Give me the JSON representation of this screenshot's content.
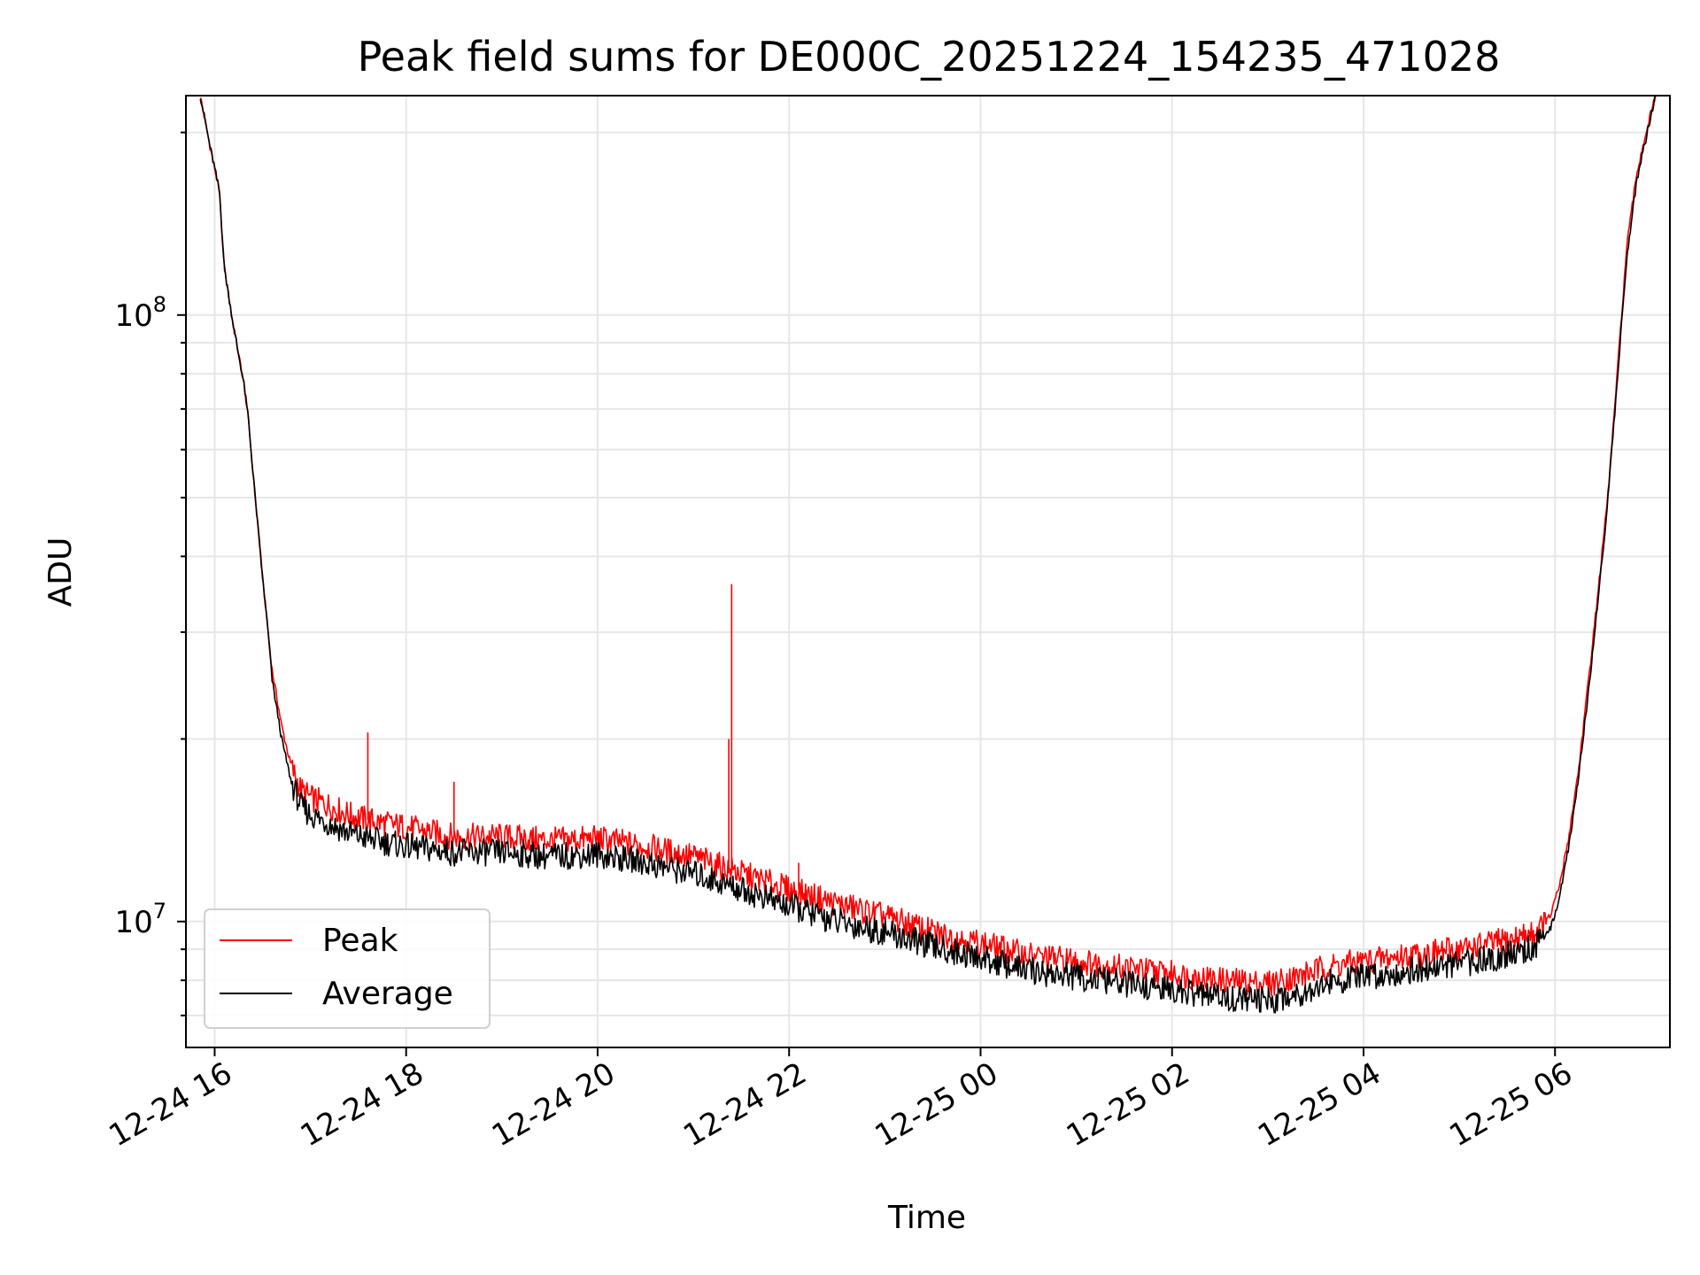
{
  "chart_data": {
    "type": "line",
    "title": "Peak field sums for DE000C_20251224_154235_471028",
    "xlabel": "Time",
    "ylabel": "ADU",
    "yscale": "log",
    "ylim": [
      6200000,
      230000000
    ],
    "xlim_hours": [
      -0.3,
      15.2
    ],
    "grid": true,
    "x_tick_labels": [
      "12-24 16",
      "12-24 18",
      "12-24 20",
      "12-24 22",
      "12-25 00",
      "12-25 02",
      "12-25 04",
      "12-25 06"
    ],
    "x_tick_hours": [
      0,
      2,
      4,
      6,
      8,
      10,
      12,
      14
    ],
    "y_major_ticks": [
      {
        "value": 10000000,
        "base": "10",
        "exp": "7"
      },
      {
        "value": 100000000,
        "base": "10",
        "exp": "8"
      }
    ],
    "legend_position": "lower-left",
    "series": [
      {
        "name": "Peak",
        "color": "#ff0000",
        "points": [
          [
            -0.15,
            230000000
          ],
          [
            -0.05,
            190000000
          ],
          [
            0.05,
            160000000
          ],
          [
            0.1,
            120000000
          ],
          [
            0.2,
            95000000
          ],
          [
            0.3,
            78000000
          ],
          [
            0.35,
            68000000
          ],
          [
            0.4,
            55000000
          ],
          [
            0.45,
            45000000
          ],
          [
            0.5,
            37000000
          ],
          [
            0.55,
            31000000
          ],
          [
            0.6,
            26000000
          ],
          [
            0.7,
            21000000
          ],
          [
            0.8,
            18000000
          ],
          [
            0.9,
            16500000
          ],
          [
            1.0,
            16000000
          ],
          [
            1.2,
            15500000
          ],
          [
            1.4,
            15000000
          ],
          [
            1.6,
            14700000
          ],
          [
            1.8,
            14500000
          ],
          [
            2.0,
            14300000
          ],
          [
            2.5,
            13800000
          ],
          [
            3.0,
            13800000
          ],
          [
            3.5,
            13600000
          ],
          [
            4.0,
            13700000
          ],
          [
            4.5,
            13300000
          ],
          [
            5.0,
            12800000
          ],
          [
            5.5,
            12000000
          ],
          [
            6.0,
            11300000
          ],
          [
            6.5,
            10700000
          ],
          [
            7.0,
            10200000
          ],
          [
            7.5,
            9600000
          ],
          [
            8.0,
            9200000
          ],
          [
            8.5,
            8800000
          ],
          [
            9.0,
            8600000
          ],
          [
            9.5,
            8400000
          ],
          [
            10.0,
            8200000
          ],
          [
            10.5,
            8000000
          ],
          [
            11.0,
            7900000
          ],
          [
            11.3,
            8100000
          ],
          [
            11.6,
            8400000
          ],
          [
            12.0,
            8600000
          ],
          [
            12.5,
            8800000
          ],
          [
            13.0,
            9000000
          ],
          [
            13.5,
            9300000
          ],
          [
            13.8,
            9600000
          ],
          [
            13.95,
            10200000
          ],
          [
            14.05,
            11500000
          ],
          [
            14.15,
            14000000
          ],
          [
            14.25,
            18000000
          ],
          [
            14.35,
            25000000
          ],
          [
            14.45,
            35000000
          ],
          [
            14.55,
            50000000
          ],
          [
            14.65,
            80000000
          ],
          [
            14.75,
            130000000
          ],
          [
            14.85,
            170000000
          ],
          [
            14.95,
            200000000
          ],
          [
            15.05,
            230000000
          ]
        ],
        "spikes": [
          [
            1.6,
            20500000
          ],
          [
            5.4,
            36000000
          ],
          [
            5.37,
            20000000
          ],
          [
            2.5,
            17000000
          ],
          [
            6.1,
            12500000
          ]
        ]
      },
      {
        "name": "Average",
        "color": "#000000",
        "points": [
          [
            -0.15,
            230000000
          ],
          [
            -0.05,
            190000000
          ],
          [
            0.05,
            160000000
          ],
          [
            0.1,
            120000000
          ],
          [
            0.2,
            95000000
          ],
          [
            0.3,
            78000000
          ],
          [
            0.35,
            68000000
          ],
          [
            0.4,
            55000000
          ],
          [
            0.45,
            45000000
          ],
          [
            0.5,
            37000000
          ],
          [
            0.55,
            31000000
          ],
          [
            0.6,
            25000000
          ],
          [
            0.7,
            20000000
          ],
          [
            0.8,
            17000000
          ],
          [
            0.9,
            15500000
          ],
          [
            1.0,
            15000000
          ],
          [
            1.2,
            14500000
          ],
          [
            1.4,
            14000000
          ],
          [
            1.6,
            13700000
          ],
          [
            1.8,
            13500000
          ],
          [
            2.0,
            13300000
          ],
          [
            2.5,
            13000000
          ],
          [
            3.0,
            13000000
          ],
          [
            3.5,
            12800000
          ],
          [
            4.0,
            12900000
          ],
          [
            4.5,
            12500000
          ],
          [
            5.0,
            12000000
          ],
          [
            5.5,
            11300000
          ],
          [
            6.0,
            10600000
          ],
          [
            6.5,
            10000000
          ],
          [
            7.0,
            9600000
          ],
          [
            7.5,
            9100000
          ],
          [
            8.0,
            8700000
          ],
          [
            8.5,
            8300000
          ],
          [
            9.0,
            8100000
          ],
          [
            9.5,
            7900000
          ],
          [
            10.0,
            7700000
          ],
          [
            10.5,
            7500000
          ],
          [
            11.0,
            7400000
          ],
          [
            11.3,
            7600000
          ],
          [
            11.6,
            7900000
          ],
          [
            12.0,
            8100000
          ],
          [
            12.5,
            8300000
          ],
          [
            13.0,
            8500000
          ],
          [
            13.5,
            8800000
          ],
          [
            13.8,
            9100000
          ],
          [
            13.95,
            9700000
          ],
          [
            14.05,
            11000000
          ],
          [
            14.15,
            13500000
          ],
          [
            14.25,
            17500000
          ],
          [
            14.35,
            24000000
          ],
          [
            14.45,
            34000000
          ],
          [
            14.55,
            49000000
          ],
          [
            14.65,
            78000000
          ],
          [
            14.75,
            125000000
          ],
          [
            14.85,
            165000000
          ],
          [
            14.95,
            195000000
          ],
          [
            15.05,
            230000000
          ]
        ],
        "spikes": []
      }
    ]
  }
}
